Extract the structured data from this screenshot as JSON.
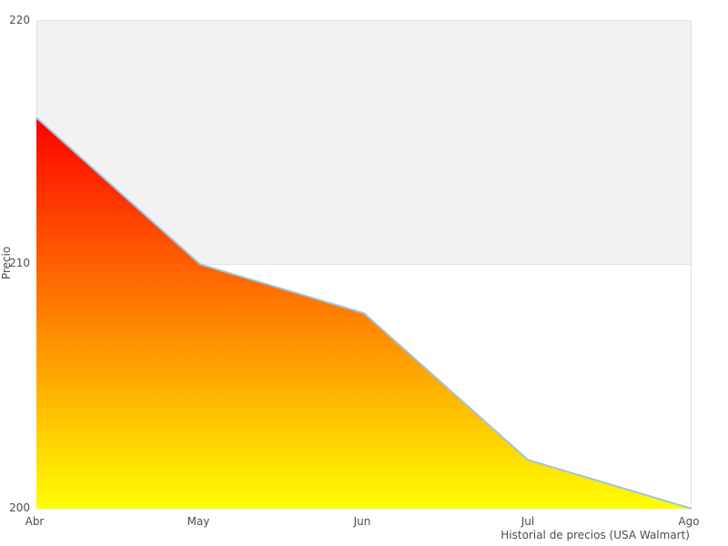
{
  "chart_data": {
    "type": "area",
    "title": "",
    "categories": [
      "Abr",
      "May",
      "Jun",
      "Jul",
      "Ago"
    ],
    "values": [
      216,
      210,
      208,
      202,
      200
    ],
    "series_name": "Precio",
    "xlabel": "Historial de precios (USA Walmart)",
    "ylabel": "Precio",
    "ylim": [
      200,
      220
    ],
    "yticks": [
      200,
      210,
      220
    ],
    "grid": "horizontal-band-220-210-shaded",
    "legend": "none"
  },
  "colors": {
    "area_gradient_top": "#ff0000",
    "area_gradient_bottom": "#ffff00",
    "line": "#a0c4e0",
    "band_upper": "#f2f2f2",
    "band_lower": "#ffffff",
    "plot_border": "#e2e2e2",
    "text": "#4d4d4d",
    "background": "#ffffff"
  }
}
